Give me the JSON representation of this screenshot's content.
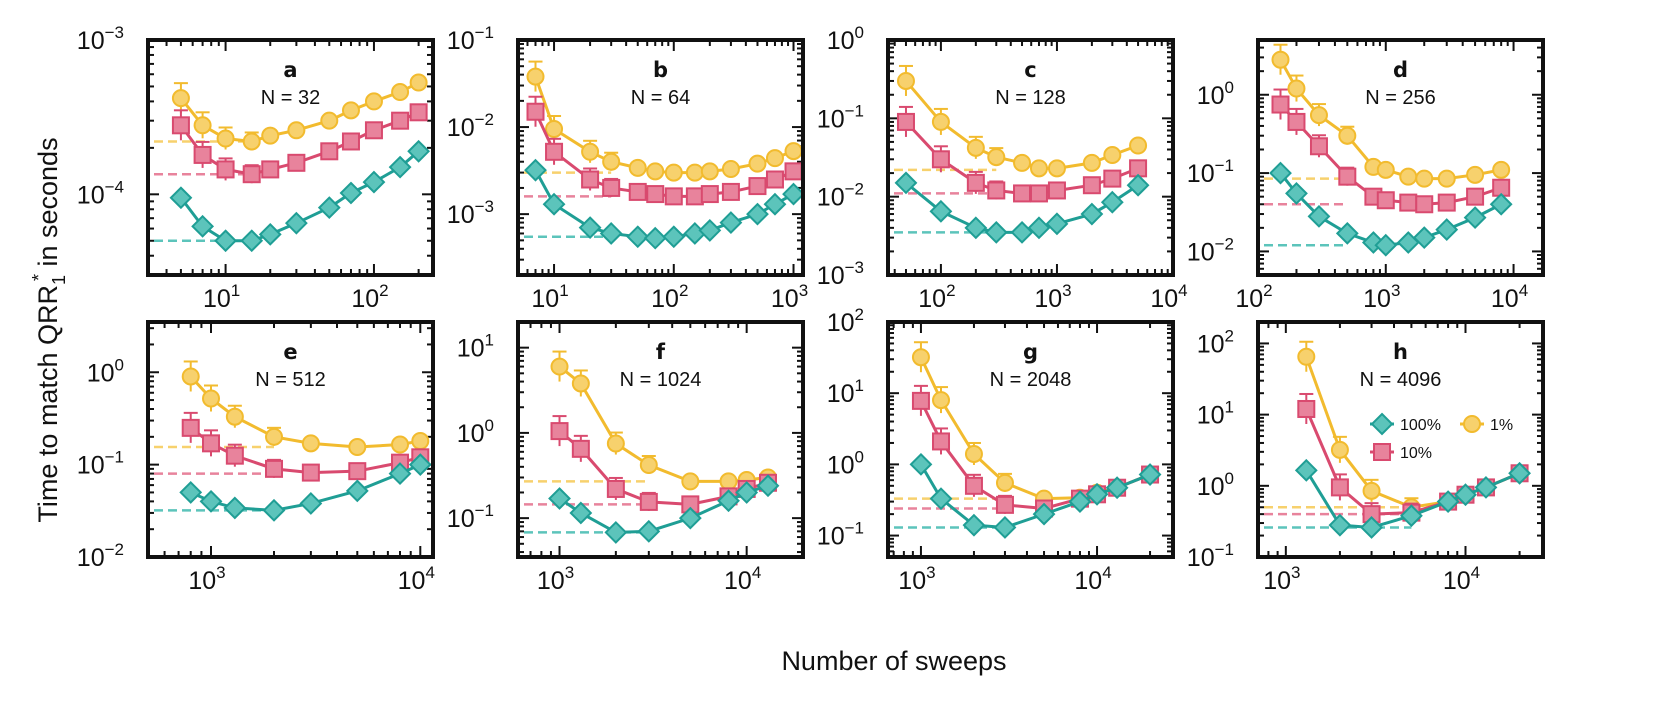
{
  "figure": {
    "xlabel": "Number of sweeps",
    "ylabel_main": "Time to match QRR",
    "ylabel_sub": "1",
    "ylabel_sup": "*",
    "ylabel_tail": " in seconds"
  },
  "legend": {
    "panel": 7,
    "entries": [
      {
        "label": "100%",
        "series": 0
      },
      {
        "label": "10%",
        "series": 1
      },
      {
        "label": "1%",
        "series": 2
      }
    ]
  },
  "series_style": [
    {
      "name": "100%",
      "marker": "diamond",
      "color": "#1f9e95",
      "fill": "#5cc4bb"
    },
    {
      "name": "10%",
      "marker": "square",
      "color": "#d94a6f",
      "fill": "#e8839c"
    },
    {
      "name": "1%",
      "marker": "circle",
      "color": "#f2bb2e",
      "fill": "#f7d16d"
    }
  ],
  "chart_data": [
    {
      "type": "line",
      "letter": "a",
      "n_label": "N = 32",
      "xscale": "log",
      "yscale": "log",
      "xlim": [
        3,
        250
      ],
      "ylim": [
        3e-05,
        0.001
      ],
      "xticks": [
        {
          "v": 10,
          "m": "10",
          "e": "1"
        },
        {
          "v": 100,
          "m": "10",
          "e": "2"
        }
      ],
      "yticks": [
        {
          "v": 0.0001,
          "m": "10",
          "e": "−4"
        },
        {
          "v": 0.001,
          "m": "10",
          "e": "−3"
        }
      ],
      "hlines": [
        5e-05,
        0.000135,
        0.00022
      ],
      "series": [
        {
          "name": "100%",
          "x": [
            5,
            7,
            10,
            15,
            20,
            30,
            50,
            70,
            100,
            150,
            200
          ],
          "y": [
            9.5e-05,
            6.2e-05,
            5e-05,
            5e-05,
            5.5e-05,
            6.5e-05,
            8.2e-05,
            0.000102,
            0.00012,
            0.00015,
            0.00019
          ]
        },
        {
          "name": "10%",
          "x": [
            5,
            7,
            10,
            15,
            20,
            30,
            50,
            70,
            100,
            150,
            200
          ],
          "y": [
            0.00028,
            0.00018,
            0.000145,
            0.000135,
            0.000145,
            0.00016,
            0.00019,
            0.00022,
            0.00026,
            0.0003,
            0.00034
          ]
        },
        {
          "name": "1%",
          "x": [
            5,
            7,
            10,
            15,
            20,
            30,
            50,
            70,
            100,
            150,
            200
          ],
          "y": [
            0.00042,
            0.00028,
            0.00023,
            0.00022,
            0.00024,
            0.00026,
            0.0003,
            0.00035,
            0.0004,
            0.00046,
            0.00053
          ]
        }
      ]
    },
    {
      "type": "line",
      "letter": "b",
      "n_label": "N = 64",
      "xscale": "log",
      "yscale": "log",
      "xlim": [
        5,
        1200
      ],
      "ylim": [
        0.0002,
        0.1
      ],
      "xticks": [
        {
          "v": 10,
          "m": "10",
          "e": "1"
        },
        {
          "v": 100,
          "m": "10",
          "e": "2"
        },
        {
          "v": 1000,
          "m": "10",
          "e": "3"
        }
      ],
      "yticks": [
        {
          "v": 0.001,
          "m": "10",
          "e": "−3"
        },
        {
          "v": 0.01,
          "m": "10",
          "e": "−2"
        },
        {
          "v": 0.1,
          "m": "10",
          "e": "−1"
        }
      ],
      "hlines": [
        0.00055,
        0.0016,
        0.003
      ],
      "series": [
        {
          "name": "100%",
          "x": [
            7,
            10,
            20,
            30,
            50,
            70,
            100,
            150,
            200,
            300,
            500,
            700,
            1000
          ],
          "y": [
            0.0032,
            0.0013,
            0.0007,
            0.0006,
            0.00055,
            0.00053,
            0.00055,
            0.0006,
            0.00065,
            0.0008,
            0.001,
            0.0013,
            0.0017
          ]
        },
        {
          "name": "10%",
          "x": [
            7,
            10,
            20,
            30,
            50,
            70,
            100,
            150,
            200,
            300,
            500,
            700,
            1000
          ],
          "y": [
            0.015,
            0.0052,
            0.0025,
            0.002,
            0.0018,
            0.0017,
            0.0016,
            0.0016,
            0.0017,
            0.0018,
            0.0021,
            0.0025,
            0.0031
          ]
        },
        {
          "name": "1%",
          "x": [
            7,
            10,
            20,
            30,
            50,
            70,
            100,
            150,
            200,
            300,
            500,
            700,
            1000
          ],
          "y": [
            0.038,
            0.0095,
            0.0052,
            0.004,
            0.0034,
            0.0031,
            0.003,
            0.003,
            0.0031,
            0.0033,
            0.0038,
            0.0044,
            0.0053
          ]
        }
      ]
    },
    {
      "type": "line",
      "letter": "c",
      "n_label": "N = 128",
      "xscale": "log",
      "yscale": "log",
      "xlim": [
        35,
        10000
      ],
      "ylim": [
        0.001,
        1
      ],
      "xticks": [
        {
          "v": 100,
          "m": "10",
          "e": "2"
        },
        {
          "v": 1000,
          "m": "10",
          "e": "3"
        },
        {
          "v": 10000,
          "m": "10",
          "e": "4"
        }
      ],
      "yticks": [
        {
          "v": 0.001,
          "m": "10",
          "e": "−3"
        },
        {
          "v": 0.01,
          "m": "10",
          "e": "−2"
        },
        {
          "v": 0.1,
          "m": "10",
          "e": "−1"
        },
        {
          "v": 1,
          "m": "10",
          "e": "0"
        }
      ],
      "hlines": [
        0.0035,
        0.011,
        0.022
      ],
      "series": [
        {
          "name": "100%",
          "x": [
            50,
            100,
            200,
            300,
            500,
            700,
            1000,
            2000,
            3000,
            5000
          ],
          "y": [
            0.015,
            0.0065,
            0.004,
            0.0035,
            0.0035,
            0.004,
            0.0045,
            0.006,
            0.0085,
            0.014
          ]
        },
        {
          "name": "10%",
          "x": [
            50,
            100,
            200,
            300,
            500,
            700,
            1000,
            2000,
            3000,
            5000
          ],
          "y": [
            0.09,
            0.03,
            0.015,
            0.012,
            0.011,
            0.011,
            0.012,
            0.014,
            0.017,
            0.023
          ]
        },
        {
          "name": "1%",
          "x": [
            50,
            100,
            200,
            300,
            500,
            700,
            1000,
            2000,
            3000,
            5000
          ],
          "y": [
            0.3,
            0.09,
            0.042,
            0.032,
            0.027,
            0.023,
            0.023,
            0.027,
            0.034,
            0.045
          ]
        }
      ]
    },
    {
      "type": "line",
      "letter": "d",
      "n_label": "N = 256",
      "xscale": "log",
      "yscale": "log",
      "xlim": [
        100,
        17000
      ],
      "ylim": [
        0.005,
        5
      ],
      "xticks": [
        {
          "v": 100,
          "m": "10",
          "e": "2"
        },
        {
          "v": 1000,
          "m": "10",
          "e": "3"
        },
        {
          "v": 10000,
          "m": "10",
          "e": "4"
        }
      ],
      "yticks": [
        {
          "v": 0.01,
          "m": "10",
          "e": "−2"
        },
        {
          "v": 0.1,
          "m": "10",
          "e": "−1"
        },
        {
          "v": 1,
          "m": "10",
          "e": "0"
        }
      ],
      "hlines": [
        0.012,
        0.04,
        0.085
      ],
      "series": [
        {
          "name": "100%",
          "x": [
            150,
            200,
            300,
            500,
            800,
            1000,
            1500,
            2000,
            3000,
            5000,
            8000
          ],
          "y": [
            0.1,
            0.055,
            0.028,
            0.017,
            0.013,
            0.012,
            0.013,
            0.015,
            0.019,
            0.027,
            0.04
          ]
        },
        {
          "name": "10%",
          "x": [
            150,
            200,
            300,
            500,
            800,
            1000,
            1500,
            2000,
            3000,
            5000,
            8000
          ],
          "y": [
            0.75,
            0.45,
            0.22,
            0.09,
            0.05,
            0.045,
            0.042,
            0.04,
            0.042,
            0.05,
            0.065
          ]
        },
        {
          "name": "1%",
          "x": [
            150,
            200,
            300,
            500,
            800,
            1000,
            1500,
            2000,
            3000,
            5000,
            8000
          ],
          "y": [
            2.8,
            1.2,
            0.55,
            0.3,
            0.12,
            0.11,
            0.09,
            0.085,
            0.085,
            0.095,
            0.11
          ]
        }
      ]
    },
    {
      "type": "line",
      "letter": "e",
      "n_label": "N = 512",
      "xscale": "log",
      "yscale": "log",
      "xlim": [
        500,
        11500
      ],
      "ylim": [
        0.01,
        3.5
      ],
      "xticks": [
        {
          "v": 1000,
          "m": "10",
          "e": "3"
        },
        {
          "v": 10000,
          "m": "10",
          "e": "4"
        }
      ],
      "yticks": [
        {
          "v": 0.01,
          "m": "10",
          "e": "−2"
        },
        {
          "v": 0.1,
          "m": "10",
          "e": "−1"
        },
        {
          "v": 1,
          "m": "10",
          "e": "0"
        }
      ],
      "hlines": [
        0.032,
        0.08,
        0.155
      ],
      "series": [
        {
          "name": "100%",
          "x": [
            800,
            1000,
            1300,
            2000,
            3000,
            5000,
            8000,
            10000
          ],
          "y": [
            0.05,
            0.04,
            0.034,
            0.032,
            0.038,
            0.052,
            0.08,
            0.1
          ]
        },
        {
          "name": "10%",
          "x": [
            800,
            1000,
            1300,
            2000,
            3000,
            5000,
            8000,
            10000
          ],
          "y": [
            0.25,
            0.17,
            0.125,
            0.09,
            0.082,
            0.085,
            0.105,
            0.12
          ]
        },
        {
          "name": "1%",
          "x": [
            800,
            1000,
            1300,
            2000,
            3000,
            5000,
            8000,
            10000
          ],
          "y": [
            0.9,
            0.52,
            0.33,
            0.2,
            0.17,
            0.155,
            0.165,
            0.18
          ]
        }
      ]
    },
    {
      "type": "line",
      "letter": "f",
      "n_label": "N = 1024",
      "xscale": "log",
      "yscale": "log",
      "xlim": [
        600,
        20000
      ],
      "ylim": [
        0.035,
        20
      ],
      "xticks": [
        {
          "v": 1000,
          "m": "10",
          "e": "3"
        },
        {
          "v": 10000,
          "m": "10",
          "e": "4"
        }
      ],
      "yticks": [
        {
          "v": 0.1,
          "m": "10",
          "e": "−1"
        },
        {
          "v": 1,
          "m": "10",
          "e": "0"
        },
        {
          "v": 10,
          "m": "10",
          "e": "1"
        }
      ],
      "hlines": [
        0.068,
        0.145,
        0.27
      ],
      "series": [
        {
          "name": "100%",
          "x": [
            1000,
            1300,
            2000,
            3000,
            5000,
            8000,
            10000,
            13000
          ],
          "y": [
            0.17,
            0.115,
            0.068,
            0.07,
            0.1,
            0.16,
            0.2,
            0.24
          ]
        },
        {
          "name": "10%",
          "x": [
            1000,
            1300,
            2000,
            3000,
            5000,
            8000,
            10000,
            13000
          ],
          "y": [
            1.05,
            0.65,
            0.22,
            0.155,
            0.145,
            0.18,
            0.22,
            0.26
          ]
        },
        {
          "name": "1%",
          "x": [
            1000,
            1300,
            2000,
            3000,
            5000,
            8000,
            10000,
            13000
          ],
          "y": [
            6,
            3.8,
            0.75,
            0.42,
            0.27,
            0.27,
            0.28,
            0.3
          ]
        }
      ]
    },
    {
      "type": "line",
      "letter": "g",
      "n_label": "N = 2048",
      "xscale": "log",
      "yscale": "log",
      "xlim": [
        650,
        27000
      ],
      "ylim": [
        0.05,
        100
      ],
      "xticks": [
        {
          "v": 1000,
          "m": "10",
          "e": "3"
        },
        {
          "v": 10000,
          "m": "10",
          "e": "4"
        }
      ],
      "yticks": [
        {
          "v": 0.1,
          "m": "10",
          "e": "−1"
        },
        {
          "v": 1,
          "m": "10",
          "e": "0"
        },
        {
          "v": 10,
          "m": "10",
          "e": "1"
        },
        {
          "v": 100,
          "m": "10",
          "e": "2"
        }
      ],
      "hlines": [
        0.13,
        0.24,
        0.33
      ],
      "series": [
        {
          "name": "100%",
          "x": [
            1000,
            1300,
            2000,
            3000,
            5000,
            8000,
            10000,
            13000,
            20000
          ],
          "y": [
            1,
            0.33,
            0.14,
            0.13,
            0.2,
            0.3,
            0.38,
            0.47,
            0.72
          ]
        },
        {
          "name": "10%",
          "x": [
            1000,
            1300,
            2000,
            3000,
            5000,
            8000,
            10000,
            13000,
            20000
          ],
          "y": [
            7.8,
            2.1,
            0.5,
            0.27,
            0.24,
            0.33,
            0.38,
            0.47,
            0.72
          ]
        },
        {
          "name": "1%",
          "x": [
            1000,
            1300,
            2000,
            3000,
            5000,
            8000,
            10000,
            13000,
            20000
          ],
          "y": [
            32,
            8,
            1.4,
            0.55,
            0.33,
            0.34,
            0.4,
            0.47,
            0.72
          ]
        }
      ]
    },
    {
      "type": "line",
      "letter": "h",
      "n_label": "N = 4096",
      "xscale": "log",
      "yscale": "log",
      "xlim": [
        700,
        27000
      ],
      "ylim": [
        0.1,
        200
      ],
      "xticks": [
        {
          "v": 1000,
          "m": "10",
          "e": "3"
        },
        {
          "v": 10000,
          "m": "10",
          "e": "4"
        }
      ],
      "yticks": [
        {
          "v": 0.1,
          "m": "10",
          "e": "−1"
        },
        {
          "v": 1,
          "m": "10",
          "e": "0"
        },
        {
          "v": 10,
          "m": "10",
          "e": "1"
        },
        {
          "v": 100,
          "m": "10",
          "e": "2"
        }
      ],
      "hlines": [
        0.26,
        0.4,
        0.5
      ],
      "series": [
        {
          "name": "100%",
          "x": [
            1300,
            2000,
            3000,
            5000,
            8000,
            10000,
            13000,
            20000
          ],
          "y": [
            1.65,
            0.28,
            0.26,
            0.38,
            0.6,
            0.75,
            0.95,
            1.5
          ]
        },
        {
          "name": "10%",
          "x": [
            1300,
            2000,
            3000,
            5000,
            8000,
            10000,
            13000,
            20000
          ],
          "y": [
            12,
            0.95,
            0.4,
            0.42,
            0.6,
            0.75,
            0.95,
            1.5
          ]
        },
        {
          "name": "1%",
          "x": [
            1300,
            2000,
            3000,
            5000,
            8000,
            10000,
            13000,
            20000
          ],
          "y": [
            65,
            3.2,
            0.85,
            0.5,
            0.6,
            0.75,
            0.95,
            1.5
          ]
        }
      ]
    }
  ]
}
